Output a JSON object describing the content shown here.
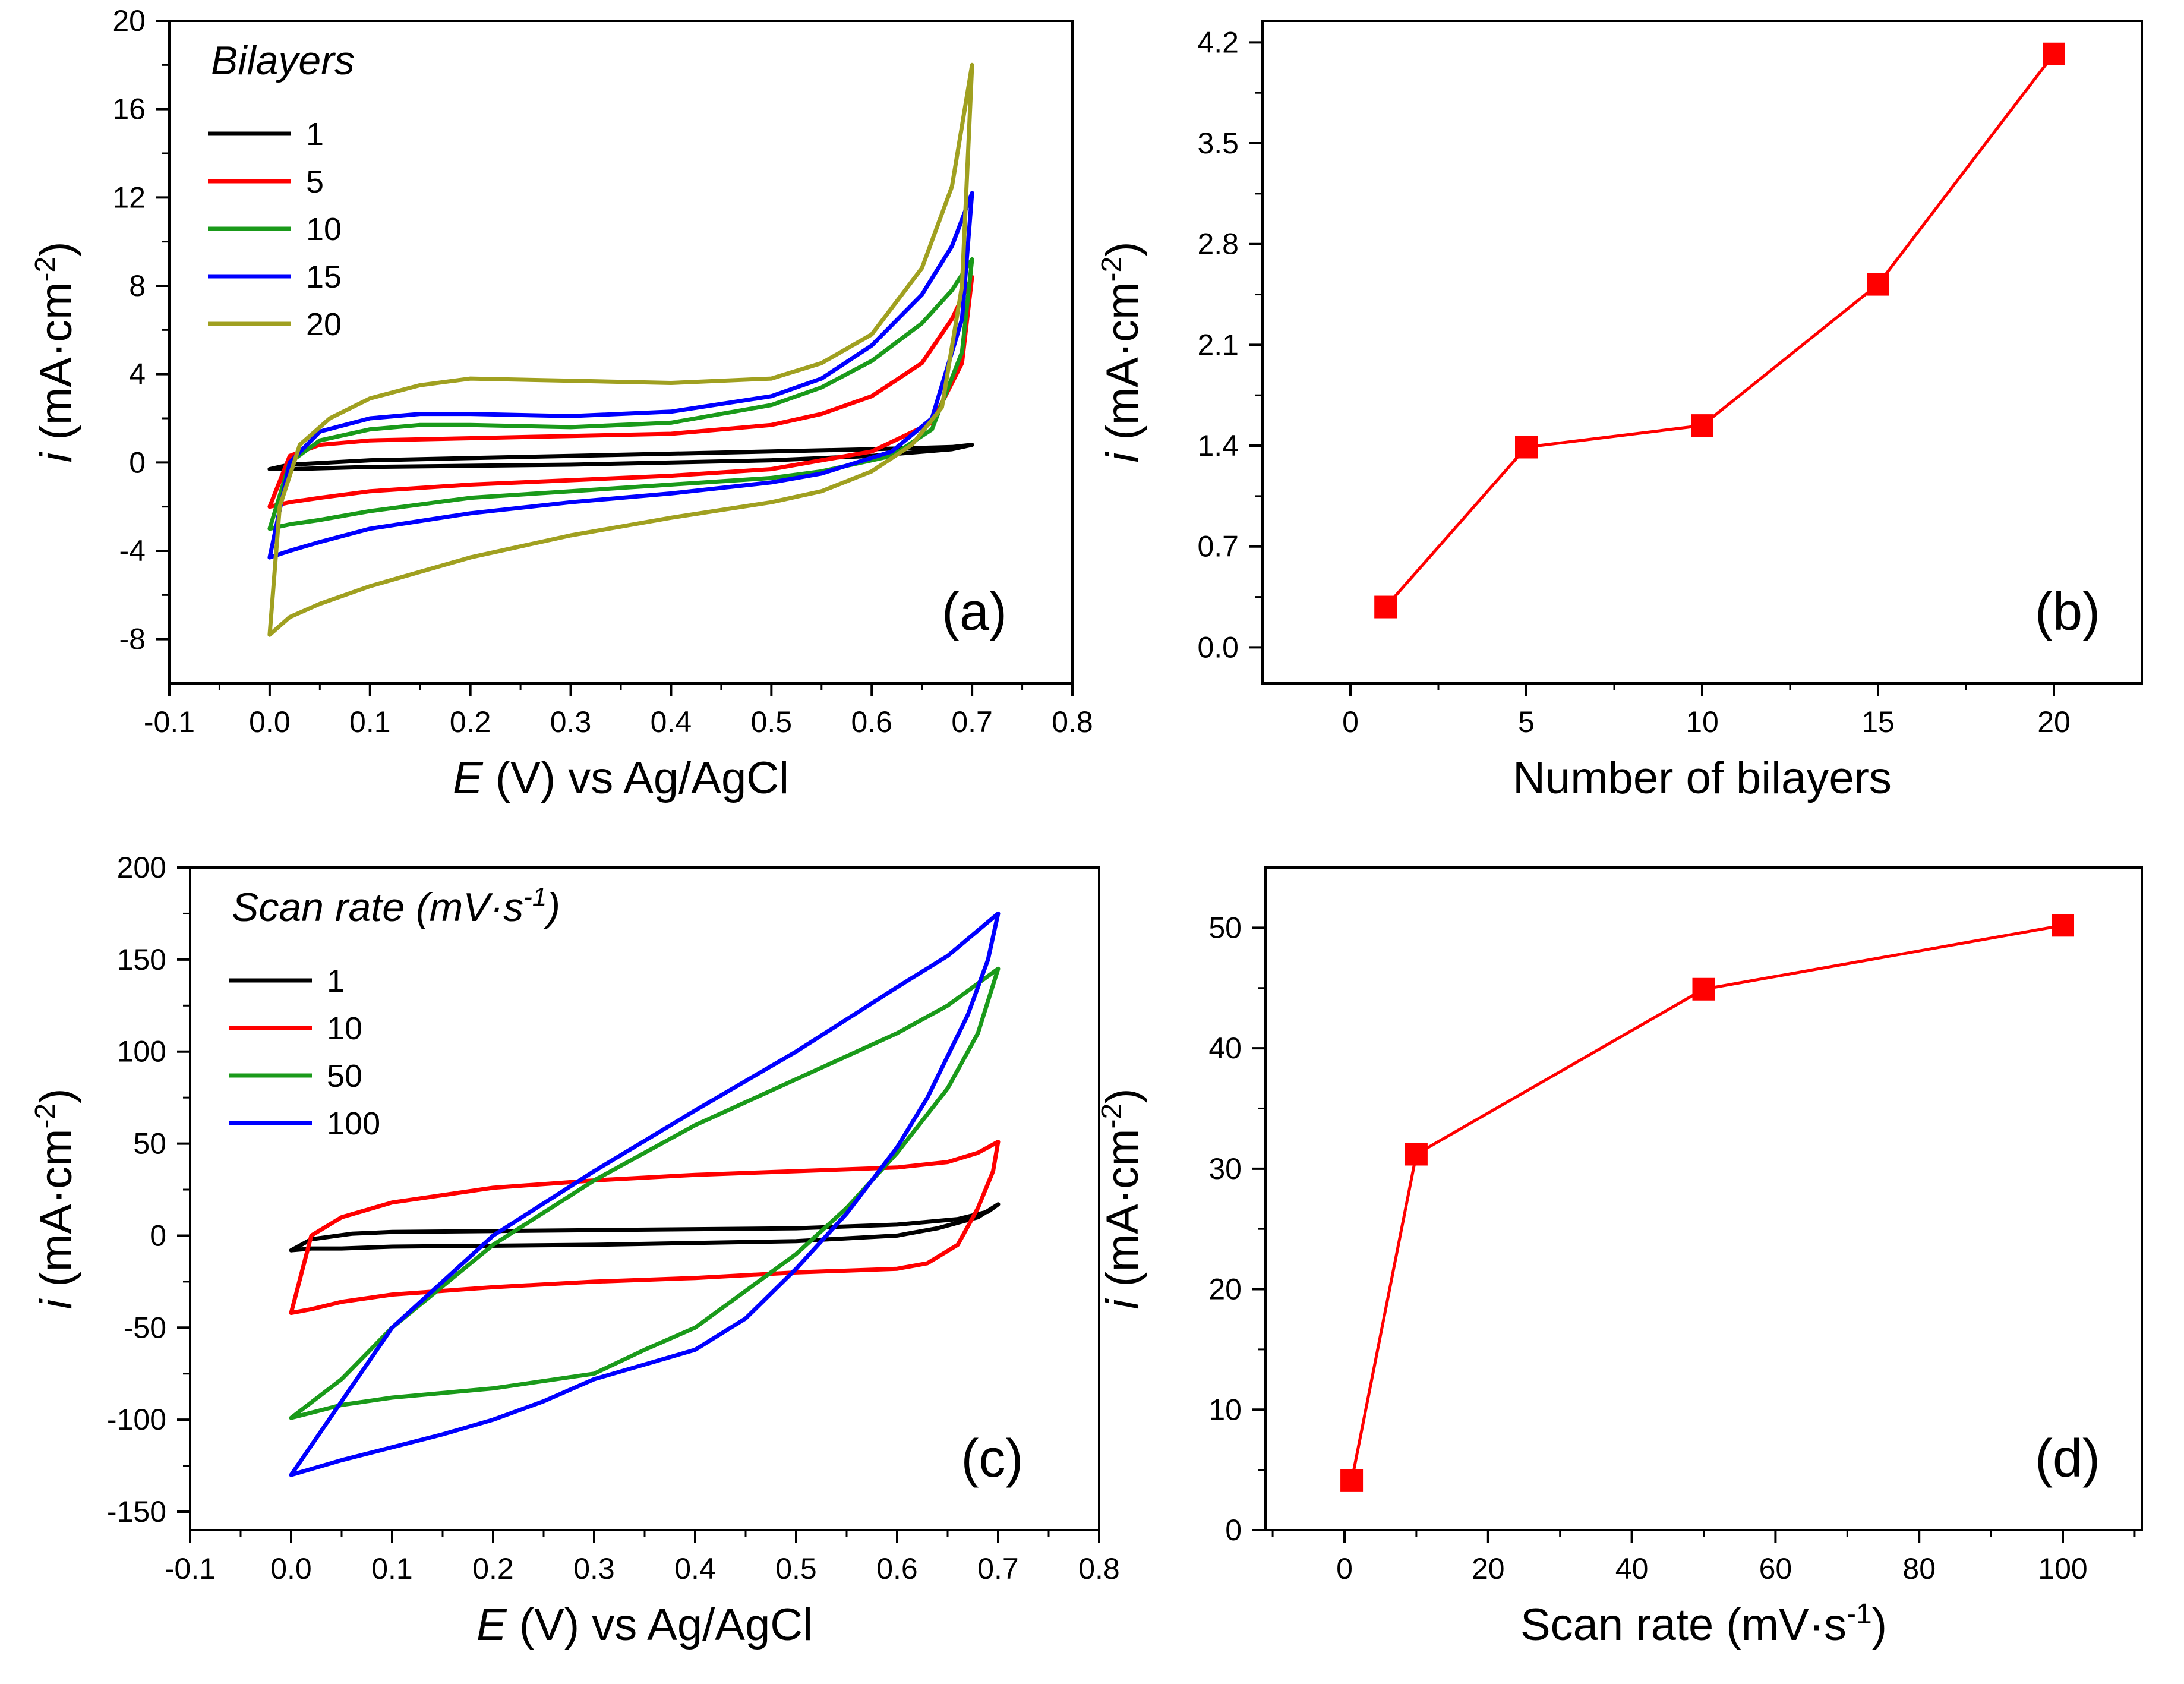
{
  "chart_data": [
    {
      "id": "a",
      "type": "line",
      "panel_label": "(a)",
      "xlabel_var": "E",
      "xlabel_rest": " (V) vs Ag/AgCl",
      "ylabel_var": "i",
      "ylabel_rest": " (mA·cm",
      "ylabel_sup": "-2",
      "ylabel_close": ")",
      "xlim": [
        -0.1,
        0.8
      ],
      "ylim": [
        -10,
        20
      ],
      "xticks": [
        -0.1,
        0.0,
        0.1,
        0.2,
        0.3,
        0.4,
        0.5,
        0.6,
        0.7,
        0.8
      ],
      "xtick_labels": [
        "-0.1",
        "0.0",
        "0.1",
        "0.2",
        "0.3",
        "0.4",
        "0.5",
        "0.6",
        "0.7",
        "0.8"
      ],
      "yticks": [
        -8,
        -4,
        0,
        4,
        8,
        12,
        16,
        20
      ],
      "ytick_labels": [
        "-8",
        "-4",
        "0",
        "4",
        "8",
        "12",
        "16",
        "20"
      ],
      "legend_title": "Bilayers",
      "legend_position": "top-left",
      "series": [
        {
          "name": "1",
          "color": "#000000",
          "x": [
            0.0,
            0.02,
            0.1,
            0.3,
            0.5,
            0.6,
            0.68,
            0.7,
            0.68,
            0.6,
            0.5,
            0.3,
            0.1,
            0.02,
            0.0
          ],
          "y": [
            -0.3,
            -0.1,
            0.1,
            0.3,
            0.5,
            0.6,
            0.7,
            0.8,
            0.6,
            0.3,
            0.1,
            -0.1,
            -0.2,
            -0.3,
            -0.3
          ]
        },
        {
          "name": "5",
          "color": "#ff0000",
          "x": [
            0.0,
            0.02,
            0.05,
            0.1,
            0.2,
            0.3,
            0.4,
            0.5,
            0.55,
            0.6,
            0.65,
            0.68,
            0.7,
            0.69,
            0.66,
            0.6,
            0.5,
            0.4,
            0.3,
            0.2,
            0.1,
            0.05,
            0.02,
            0.0
          ],
          "y": [
            -2.0,
            0.3,
            0.8,
            1.0,
            1.1,
            1.2,
            1.3,
            1.7,
            2.2,
            3.0,
            4.5,
            6.5,
            8.4,
            4.5,
            1.8,
            0.5,
            -0.3,
            -0.6,
            -0.8,
            -1.0,
            -1.3,
            -1.6,
            -1.8,
            -2.0
          ]
        },
        {
          "name": "10",
          "color": "#1a9a1a",
          "x": [
            0.0,
            0.02,
            0.05,
            0.1,
            0.15,
            0.2,
            0.3,
            0.4,
            0.5,
            0.55,
            0.6,
            0.65,
            0.68,
            0.7,
            0.69,
            0.66,
            0.62,
            0.55,
            0.5,
            0.4,
            0.3,
            0.2,
            0.1,
            0.05,
            0.02,
            0.0
          ],
          "y": [
            -3.0,
            0.0,
            1.0,
            1.5,
            1.7,
            1.7,
            1.6,
            1.8,
            2.6,
            3.4,
            4.6,
            6.3,
            7.8,
            9.2,
            5.0,
            1.5,
            0.3,
            -0.4,
            -0.7,
            -1.0,
            -1.3,
            -1.6,
            -2.2,
            -2.6,
            -2.8,
            -3.0
          ]
        },
        {
          "name": "15",
          "color": "#0000ff",
          "x": [
            0.0,
            0.02,
            0.05,
            0.1,
            0.15,
            0.2,
            0.3,
            0.4,
            0.5,
            0.55,
            0.6,
            0.65,
            0.68,
            0.7,
            0.69,
            0.66,
            0.62,
            0.55,
            0.5,
            0.4,
            0.3,
            0.2,
            0.1,
            0.05,
            0.02,
            0.0
          ],
          "y": [
            -4.3,
            0.0,
            1.4,
            2.0,
            2.2,
            2.2,
            2.1,
            2.3,
            3.0,
            3.8,
            5.3,
            7.6,
            9.8,
            12.2,
            6.5,
            2.0,
            0.5,
            -0.5,
            -0.9,
            -1.4,
            -1.8,
            -2.3,
            -3.0,
            -3.6,
            -4.0,
            -4.3
          ]
        },
        {
          "name": "20",
          "color": "#a0a020",
          "x": [
            0.0,
            0.01,
            0.03,
            0.06,
            0.1,
            0.15,
            0.2,
            0.3,
            0.4,
            0.5,
            0.55,
            0.6,
            0.65,
            0.68,
            0.7,
            0.69,
            0.67,
            0.64,
            0.6,
            0.55,
            0.5,
            0.4,
            0.3,
            0.2,
            0.1,
            0.05,
            0.02,
            0.0
          ],
          "y": [
            -7.8,
            -2.0,
            0.8,
            2.0,
            2.9,
            3.5,
            3.8,
            3.7,
            3.6,
            3.8,
            4.5,
            5.8,
            8.8,
            12.5,
            18.0,
            8.0,
            2.5,
            0.8,
            -0.4,
            -1.3,
            -1.8,
            -2.5,
            -3.3,
            -4.3,
            -5.6,
            -6.4,
            -7.0,
            -7.8
          ]
        }
      ]
    },
    {
      "id": "b",
      "type": "line",
      "panel_label": "(b)",
      "xlabel": "Number of bilayers",
      "ylabel_var": "i",
      "ylabel_rest": " (mA·cm",
      "ylabel_sup": "-2",
      "ylabel_close": ")",
      "xlim": [
        -2.5,
        22.5
      ],
      "ylim": [
        -0.25,
        4.35
      ],
      "xticks": [
        0,
        5,
        10,
        15,
        20
      ],
      "xtick_labels": [
        "0",
        "5",
        "10",
        "15",
        "20"
      ],
      "yticks": [
        0.0,
        0.7,
        1.4,
        2.1,
        2.8,
        3.5,
        4.2
      ],
      "ytick_labels": [
        "0.0",
        "0.7",
        "1.4",
        "2.1",
        "2.8",
        "3.5",
        "4.2"
      ],
      "color": "#ff0000",
      "x": [
        1,
        5,
        10,
        15,
        20
      ],
      "y": [
        0.28,
        1.39,
        1.54,
        2.52,
        4.12
      ]
    },
    {
      "id": "c",
      "type": "line",
      "panel_label": "(c)",
      "xlabel_var": "E",
      "xlabel_rest": " (V) vs Ag/AgCl",
      "ylabel_var": "i",
      "ylabel_rest": " (mA·cm",
      "ylabel_sup": "-2",
      "ylabel_close": ")",
      "xlim": [
        -0.1,
        0.8
      ],
      "ylim": [
        -160,
        200
      ],
      "xticks": [
        -0.1,
        0.0,
        0.1,
        0.2,
        0.3,
        0.4,
        0.5,
        0.6,
        0.7,
        0.8
      ],
      "xtick_labels": [
        "-0.1",
        "0.0",
        "0.1",
        "0.2",
        "0.3",
        "0.4",
        "0.5",
        "0.6",
        "0.7",
        "0.8"
      ],
      "yticks": [
        -150,
        -100,
        -50,
        0,
        50,
        100,
        150,
        200
      ],
      "ytick_labels": [
        "-150",
        "-100",
        "-50",
        "0",
        "50",
        "100",
        "150",
        "200"
      ],
      "legend_title": "Scan rate (mV·s",
      "legend_title_sup": "-1",
      "legend_title_close": ")",
      "legend_position": "top-left",
      "series": [
        {
          "name": "1",
          "color": "#000000",
          "x": [
            0.0,
            0.02,
            0.06,
            0.1,
            0.3,
            0.5,
            0.6,
            0.66,
            0.69,
            0.7,
            0.68,
            0.64,
            0.6,
            0.5,
            0.3,
            0.1,
            0.05,
            0.02,
            0.0
          ],
          "y": [
            -8,
            -2,
            1,
            2,
            3,
            4,
            6,
            9,
            13,
            17,
            10,
            4,
            0,
            -3,
            -5,
            -6,
            -7,
            -7,
            -8
          ]
        },
        {
          "name": "10",
          "color": "#ff0000",
          "x": [
            0.0,
            0.02,
            0.05,
            0.1,
            0.2,
            0.3,
            0.4,
            0.5,
            0.6,
            0.65,
            0.68,
            0.7,
            0.695,
            0.68,
            0.66,
            0.63,
            0.6,
            0.5,
            0.4,
            0.3,
            0.2,
            0.1,
            0.05,
            0.02,
            0.0
          ],
          "y": [
            -42,
            0,
            10,
            18,
            26,
            30,
            33,
            35,
            37,
            40,
            45,
            51,
            35,
            15,
            -5,
            -15,
            -18,
            -20,
            -23,
            -25,
            -28,
            -32,
            -36,
            -40,
            -42
          ]
        },
        {
          "name": "50",
          "color": "#1a9a1a",
          "x": [
            0.0,
            0.05,
            0.1,
            0.2,
            0.3,
            0.4,
            0.5,
            0.6,
            0.65,
            0.7,
            0.68,
            0.65,
            0.6,
            0.55,
            0.5,
            0.45,
            0.4,
            0.35,
            0.3,
            0.2,
            0.1,
            0.05,
            0.0
          ],
          "y": [
            -99,
            -78,
            -50,
            -5,
            30,
            60,
            85,
            110,
            125,
            145,
            110,
            80,
            45,
            15,
            -10,
            -30,
            -50,
            -62,
            -75,
            -83,
            -88,
            -92,
            -99
          ]
        },
        {
          "name": "100",
          "color": "#0000ff",
          "x": [
            0.0,
            0.05,
            0.1,
            0.15,
            0.2,
            0.3,
            0.4,
            0.5,
            0.6,
            0.65,
            0.7,
            0.69,
            0.67,
            0.63,
            0.6,
            0.55,
            0.5,
            0.45,
            0.4,
            0.35,
            0.3,
            0.25,
            0.2,
            0.15,
            0.1,
            0.05,
            0.0
          ],
          "y": [
            -130,
            -90,
            -50,
            -25,
            0,
            35,
            68,
            100,
            135,
            152,
            175,
            150,
            120,
            75,
            48,
            12,
            -18,
            -45,
            -62,
            -70,
            -78,
            -90,
            -100,
            -108,
            -115,
            -122,
            -130
          ]
        }
      ]
    },
    {
      "id": "d",
      "type": "line",
      "panel_label": "(d)",
      "xlabel": "Scan rate (mV·s",
      "xlabel_sup": "-1",
      "xlabel_close": ")",
      "ylabel_var": "i",
      "ylabel_rest": " (mA·cm",
      "ylabel_sup": "-2",
      "ylabel_close": ")",
      "xlim": [
        -11,
        111
      ],
      "ylim": [
        0,
        55
      ],
      "xticks": [
        0,
        20,
        40,
        60,
        80,
        100
      ],
      "xtick_labels": [
        "0",
        "20",
        "40",
        "60",
        "80",
        "100"
      ],
      "yticks": [
        0,
        10,
        20,
        30,
        40,
        50
      ],
      "ytick_labels": [
        "0",
        "10",
        "20",
        "30",
        "40",
        "50"
      ],
      "color": "#ff0000",
      "x": [
        1,
        10,
        50,
        100
      ],
      "y": [
        4.1,
        31.2,
        44.9,
        50.2
      ]
    }
  ]
}
